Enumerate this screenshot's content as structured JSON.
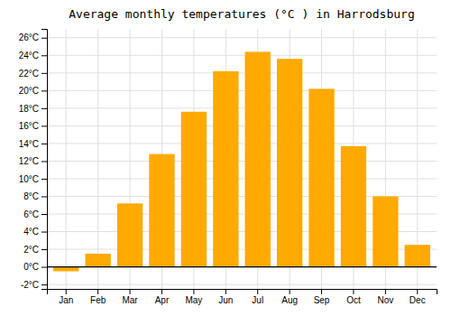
{
  "chart_data": {
    "type": "bar",
    "title": "Average monthly temperatures (°C ) in Harrodsburg",
    "categories": [
      "Jan",
      "Feb",
      "Mar",
      "Apr",
      "May",
      "Jun",
      "Jul",
      "Aug",
      "Sep",
      "Oct",
      "Nov",
      "Dec"
    ],
    "values": [
      -0.5,
      1.5,
      7.2,
      12.8,
      17.6,
      22.2,
      24.4,
      23.6,
      20.2,
      13.7,
      8.0,
      2.5
    ],
    "color": "#FFAA00",
    "ylim": [
      -2.5,
      27
    ],
    "yticks": [
      {
        "value": -2,
        "label": "-2°C"
      },
      {
        "value": 0,
        "label": "0°C"
      },
      {
        "value": 2,
        "label": "2°C"
      },
      {
        "value": 4,
        "label": "4°C"
      },
      {
        "value": 6,
        "label": "6°C"
      },
      {
        "value": 8,
        "label": "8°C"
      },
      {
        "value": 10,
        "label": "10°C"
      },
      {
        "value": 12,
        "label": "12°C"
      },
      {
        "value": 14,
        "label": "14°C"
      },
      {
        "value": 16,
        "label": "16°C"
      },
      {
        "value": 18,
        "label": "18°C"
      },
      {
        "value": 20,
        "label": "20°C"
      },
      {
        "value": 22,
        "label": "22°C"
      },
      {
        "value": 24,
        "label": "24°C"
      },
      {
        "value": 26,
        "label": "26°C"
      }
    ],
    "grid": true
  }
}
